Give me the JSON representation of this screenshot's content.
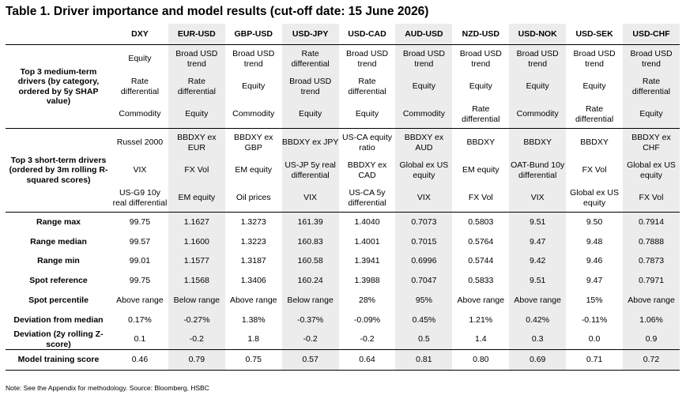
{
  "title": "Table 1. Driver importance and model results (cut-off date: 15 June 2026)",
  "columns": [
    "DXY",
    "EUR-USD",
    "GBP-USD",
    "USD-JPY",
    "USD-CAD",
    "AUD-USD",
    "NZD-USD",
    "USD-NOK",
    "USD-SEK",
    "USD-CHF"
  ],
  "medium_label": "Top 3 medium-term drivers (by category, ordered by 5y SHAP value)",
  "medium_rows": [
    [
      "Equity",
      "Broad USD trend",
      "Broad USD trend",
      "Rate differential",
      "Broad USD trend",
      "Broad USD trend",
      "Broad USD trend",
      "Broad USD trend",
      "Broad USD trend",
      "Broad USD trend"
    ],
    [
      "Rate differential",
      "Rate differential",
      "Equity",
      "Broad USD trend",
      "Rate differential",
      "Equity",
      "Equity",
      "Equity",
      "Equity",
      "Rate differential"
    ],
    [
      "Commodity",
      "Equity",
      "Commodity",
      "Equity",
      "Equity",
      "Commodity",
      "Rate differential",
      "Commodity",
      "Rate differential",
      "Equity"
    ]
  ],
  "short_label": "Top 3 short-term drivers (ordered by 3m rolling R-squared scores)",
  "short_rows": [
    [
      "Russel 2000",
      "BBDXY ex EUR",
      "BBDXY ex GBP",
      "BBDXY ex JPY",
      "US-CA equity ratio",
      "BBDXY ex AUD",
      "BBDXY",
      "BBDXY",
      "BBDXY",
      "BBDXY ex CHF"
    ],
    [
      "VIX",
      "FX Vol",
      "EM equity",
      "US-JP 5y real differential",
      "BBDXY ex CAD",
      "Global ex US equity",
      "EM equity",
      "OAT-Bund 10y differential",
      "FX Vol",
      "Global ex US equity"
    ],
    [
      "US-G9 10y real differential",
      "EM equity",
      "Oil prices",
      "VIX",
      "US-CA 5y differential",
      "VIX",
      "FX Vol",
      "VIX",
      "Global ex US equity",
      "FX Vol"
    ]
  ],
  "stats": [
    {
      "label": "Range max",
      "values": [
        "99.75",
        "1.1627",
        "1.3273",
        "161.39",
        "1.4040",
        "0.7073",
        "0.5803",
        "9.51",
        "9.50",
        "0.7914"
      ]
    },
    {
      "label": "Range median",
      "values": [
        "99.57",
        "1.1600",
        "1.3223",
        "160.83",
        "1.4001",
        "0.7015",
        "0.5764",
        "9.47",
        "9.48",
        "0.7888"
      ]
    },
    {
      "label": "Range min",
      "values": [
        "99.01",
        "1.1577",
        "1.3187",
        "160.58",
        "1.3941",
        "0.6996",
        "0.5744",
        "9.42",
        "9.46",
        "0.7873"
      ]
    },
    {
      "label": "Spot reference",
      "values": [
        "99.75",
        "1.1568",
        "1.3406",
        "160.24",
        "1.3988",
        "0.7047",
        "0.5833",
        "9.51",
        "9.47",
        "0.7971"
      ]
    },
    {
      "label": "Spot percentile",
      "values": [
        "Above range",
        "Below range",
        "Above range",
        "Below range",
        "28%",
        "95%",
        "Above range",
        "Above range",
        "15%",
        "Above range"
      ]
    },
    {
      "label": "Deviation from median",
      "values": [
        "0.17%",
        "-0.27%",
        "1.38%",
        "-0.37%",
        "-0.09%",
        "0.45%",
        "1.21%",
        "0.42%",
        "-0.11%",
        "1.06%"
      ]
    },
    {
      "label": "Deviation (2y rolling Z-score)",
      "values": [
        "0.1",
        "-0.2",
        "1.8",
        "-0.2",
        "-0.2",
        "0.5",
        "1.4",
        "0.3",
        "0.0",
        "0.9"
      ]
    }
  ],
  "training": {
    "label": "Model training score",
    "values": [
      "0.46",
      "0.79",
      "0.75",
      "0.57",
      "0.64",
      "0.81",
      "0.80",
      "0.69",
      "0.71",
      "0.72"
    ]
  },
  "note": "Note: See the Appendix for methodology. Source: Bloomberg, HSBC",
  "colors": {
    "shade": "#ececec",
    "rule": "#000000"
  }
}
